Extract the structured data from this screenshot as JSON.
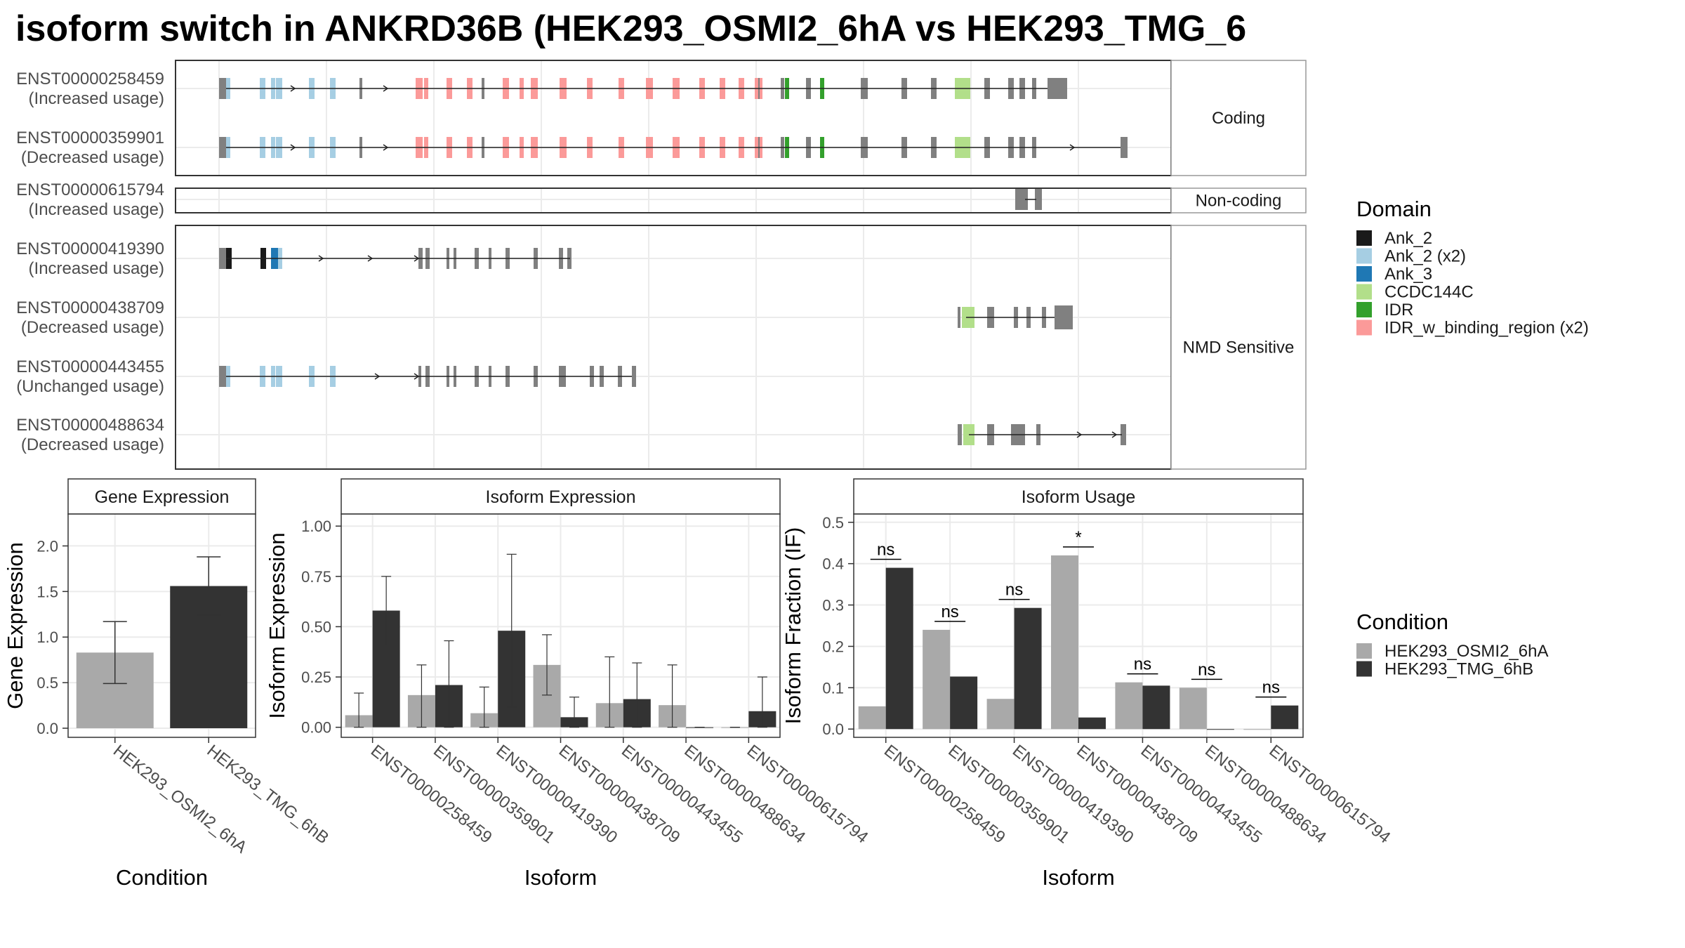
{
  "title": "isoform switch in ANKRD36B (HEK293_OSMI2_6hA vs HEK293_TMG_6",
  "structure": {
    "facets": [
      "Coding",
      "Non-coding",
      "NMD Sensitive"
    ],
    "isoforms": [
      {
        "id": "ENST00000258459",
        "usage": "(Increased usage)",
        "facet": 0
      },
      {
        "id": "ENST00000359901",
        "usage": "(Decreased usage)",
        "facet": 0
      },
      {
        "id": "ENST00000615794",
        "usage": "(Increased usage)",
        "facet": 1
      },
      {
        "id": "ENST00000419390",
        "usage": "(Increased usage)",
        "facet": 2
      },
      {
        "id": "ENST00000438709",
        "usage": "(Decreased usage)",
        "facet": 2
      },
      {
        "id": "ENST00000443455",
        "usage": "(Unchanged usage)",
        "facet": 2
      },
      {
        "id": "ENST00000488634",
        "usage": "(Decreased usage)",
        "facet": 2
      }
    ]
  },
  "legend_domain": {
    "title": "Domain",
    "items": [
      {
        "label": "Ank_2",
        "color": "#1a1a1a"
      },
      {
        "label": "Ank_2 (x2)",
        "color": "#a6cee3"
      },
      {
        "label": "Ank_3",
        "color": "#1f78b4"
      },
      {
        "label": "CCDC144C",
        "color": "#b2df8a"
      },
      {
        "label": "IDR",
        "color": "#33a02c"
      },
      {
        "label": "IDR_w_binding_region (x2)",
        "color": "#fb9a99"
      }
    ]
  },
  "legend_condition": {
    "title": "Condition",
    "items": [
      {
        "label": "HEK293_OSMI2_6hA",
        "color": "#a9a9a9"
      },
      {
        "label": "HEK293_TMG_6hB",
        "color": "#333333"
      }
    ]
  },
  "chart_data": [
    {
      "type": "bar",
      "title": "Gene Expression",
      "xlabel": "Condition",
      "ylabel": "Gene Expression",
      "categories": [
        "HEK293_OSMI2_6hA",
        "HEK293_TMG_6hB"
      ],
      "values": [
        0.83,
        1.56
      ],
      "errors": [
        [
          0.49,
          1.17
        ],
        [
          1.24,
          1.88
        ]
      ],
      "colors": [
        "#a9a9a9",
        "#333333"
      ],
      "ylim": [
        -0.1,
        2.35
      ],
      "yticks": [
        0.0,
        0.5,
        1.0,
        1.5,
        2.0
      ],
      "ytick_labels": [
        "0.0",
        "0.5",
        "1.0",
        "1.5",
        "2.0"
      ]
    },
    {
      "type": "bar",
      "title": "Isoform Expression",
      "xlabel": "Isoform",
      "ylabel": "Isoform Expression",
      "categories": [
        "ENST00000258459",
        "ENST00000359901",
        "ENST00000419390",
        "ENST00000438709",
        "ENST00000443455",
        "ENST00000488634",
        "ENST00000615794"
      ],
      "series": [
        {
          "name": "HEK293_OSMI2_6hA",
          "values": [
            0.06,
            0.16,
            0.07,
            0.31,
            0.12,
            0.11,
            0.0
          ],
          "errors": [
            [
              0.0,
              0.17
            ],
            [
              0.0,
              0.31
            ],
            [
              0.0,
              0.2
            ],
            [
              0.16,
              0.46
            ],
            [
              0.0,
              0.35
            ],
            [
              0.0,
              0.31
            ],
            [
              0.0,
              0.0
            ]
          ]
        },
        {
          "name": "HEK293_TMG_6hB",
          "values": [
            0.58,
            0.21,
            0.48,
            0.05,
            0.14,
            0.0,
            0.08
          ],
          "errors": [
            [
              0.41,
              0.75
            ],
            [
              0.0,
              0.43
            ],
            [
              0.1,
              0.86
            ],
            [
              0.0,
              0.15
            ],
            [
              0.0,
              0.32
            ],
            [
              0.0,
              0.0
            ],
            [
              0.0,
              0.25
            ]
          ]
        }
      ],
      "ylim": [
        -0.05,
        1.06
      ],
      "yticks": [
        0.0,
        0.25,
        0.5,
        0.75,
        1.0
      ],
      "ytick_labels": [
        "0.00",
        "0.25",
        "0.50",
        "0.75",
        "1.00"
      ]
    },
    {
      "type": "bar",
      "title": "Isoform Usage",
      "xlabel": "Isoform",
      "ylabel": "Isoform Fraction (IF)",
      "categories": [
        "ENST00000258459",
        "ENST00000359901",
        "ENST00000419390",
        "ENST00000438709",
        "ENST00000443455",
        "ENST00000488634",
        "ENST00000615794"
      ],
      "series": [
        {
          "name": "HEK293_OSMI2_6hA",
          "values": [
            0.055,
            0.24,
            0.073,
            0.42,
            0.113,
            0.1,
            0.0
          ]
        },
        {
          "name": "HEK293_TMG_6hB",
          "values": [
            0.39,
            0.127,
            0.293,
            0.028,
            0.105,
            0.0,
            0.057
          ]
        }
      ],
      "significance": [
        "ns",
        "ns",
        "ns",
        "*",
        "ns",
        "ns",
        "ns"
      ],
      "ylim": [
        -0.02,
        0.52
      ],
      "yticks": [
        0.0,
        0.1,
        0.2,
        0.3,
        0.4,
        0.5
      ],
      "ytick_labels": [
        "0.0",
        "0.1",
        "0.2",
        "0.3",
        "0.4",
        "0.5"
      ]
    }
  ]
}
